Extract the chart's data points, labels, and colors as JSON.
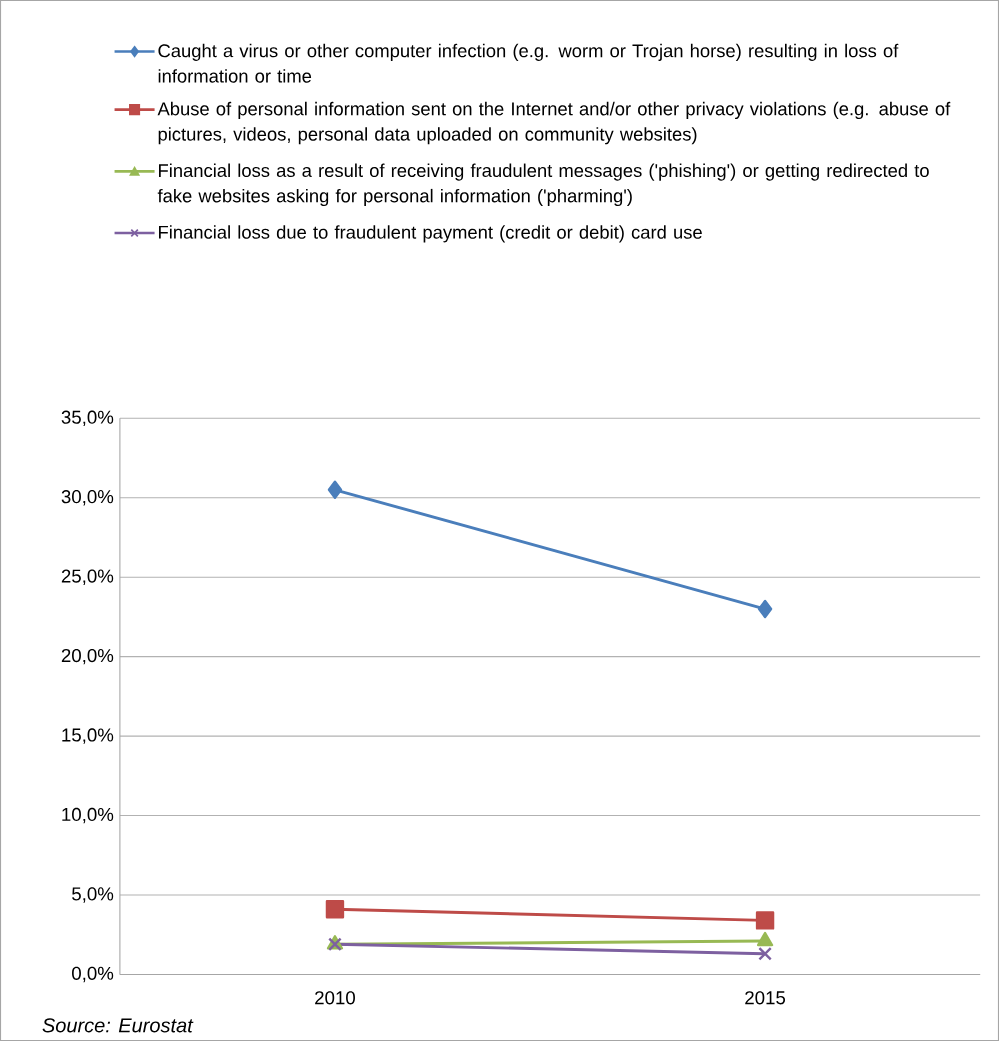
{
  "chart_data": {
    "type": "line",
    "categories": [
      "2010",
      "2015"
    ],
    "series": [
      {
        "name": "Caught a virus or other computer infection (e.g. worm or Trojan horse) resulting in loss of information or time",
        "color": "#4a7ebb",
        "marker": "diamond",
        "values": [
          30.5,
          23.0
        ]
      },
      {
        "name": "Abuse of personal information sent on the Internet and/or other privacy violations (e.g. abuse of pictures, videos, personal data uploaded on community websites)",
        "color": "#be4b48",
        "marker": "square",
        "values": [
          4.1,
          3.4
        ]
      },
      {
        "name": "Financial loss as a result of receiving fraudulent messages ('phishing') or getting redirected to fake websites asking for personal information ('pharming')",
        "color": "#98b954",
        "marker": "triangle",
        "values": [
          1.9,
          2.1
        ]
      },
      {
        "name": "Financial loss due to fraudulent payment (credit or debit) card use",
        "color": "#7d60a0",
        "marker": "cross",
        "values": [
          1.9,
          1.3
        ]
      }
    ],
    "ylim": [
      0,
      35
    ],
    "yticks": [
      {
        "value": 0,
        "label": "0,0%"
      },
      {
        "value": 5,
        "label": "5,0%"
      },
      {
        "value": 10,
        "label": "10,0%"
      },
      {
        "value": 15,
        "label": "15,0%"
      },
      {
        "value": 20,
        "label": "20,0%"
      },
      {
        "value": 25,
        "label": "25,0%"
      },
      {
        "value": 30,
        "label": "30,0%"
      },
      {
        "value": 35,
        "label": "35,0%"
      }
    ],
    "grid": "y",
    "legend": "top",
    "line_style": "solid",
    "annotations": [
      "*Source: Eurostat*"
    ]
  }
}
